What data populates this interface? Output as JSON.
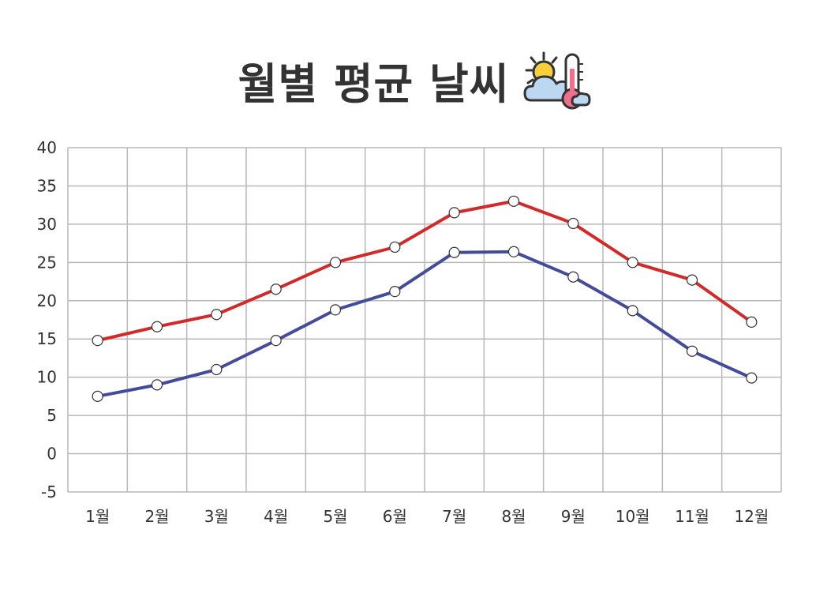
{
  "title": "월별 평균 날씨",
  "title_icon": "weather-sun-cloud-thermometer-icon",
  "chart_data": {
    "type": "line",
    "categories": [
      "1월",
      "2월",
      "3월",
      "4월",
      "5월",
      "6월",
      "7월",
      "8월",
      "9월",
      "10월",
      "11월",
      "12월"
    ],
    "series": [
      {
        "values": [
          14.8,
          16.6,
          18.2,
          21.5,
          25.0,
          27.0,
          31.5,
          33.0,
          30.1,
          25.0,
          22.7,
          17.2
        ],
        "color": "#d12a2a"
      },
      {
        "values": [
          7.5,
          9.0,
          11.0,
          14.8,
          18.8,
          21.2,
          26.3,
          26.4,
          23.1,
          18.7,
          13.4,
          9.9
        ],
        "color": "#434b9a"
      }
    ],
    "ylim": [
      -5,
      40
    ],
    "yticks": [
      "40",
      "35",
      "30",
      "25",
      "20",
      "15",
      "10",
      "5",
      "0",
      "-5"
    ],
    "grid": true,
    "marker": "circle-white"
  }
}
